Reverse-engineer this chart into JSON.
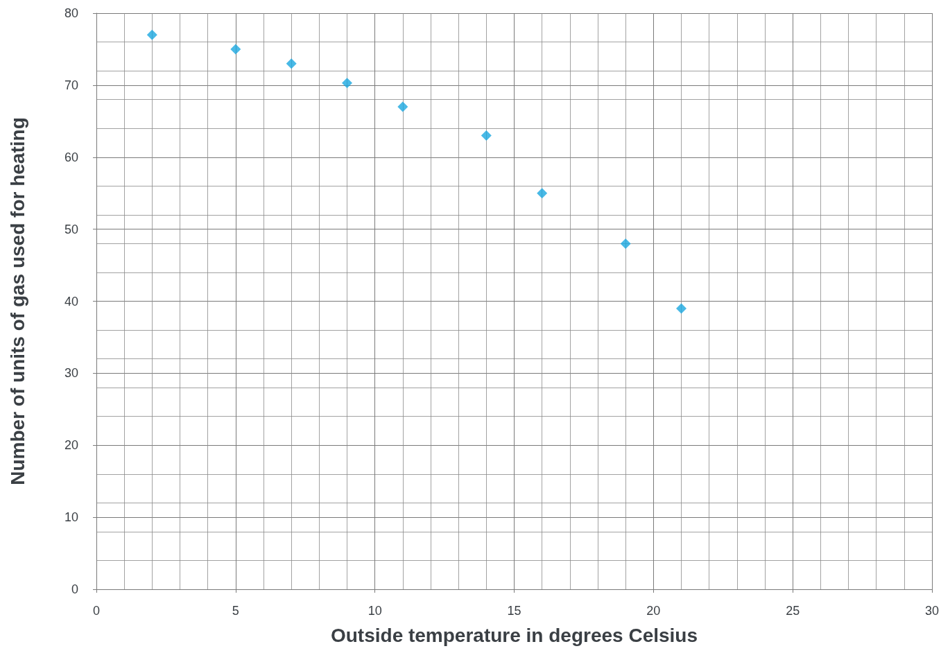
{
  "chart_data": {
    "type": "scatter",
    "xlabel": "Outside temperature in degrees Celsius",
    "ylabel": "Number of units of gas used for heating",
    "x": [
      2,
      5,
      7,
      9,
      11,
      14,
      16,
      19,
      21
    ],
    "values": [
      77,
      75,
      73,
      70.3,
      67,
      63,
      55,
      48,
      39
    ],
    "color": "#1aa7e0",
    "marker": "diamond",
    "grid": true,
    "xlim": [
      0,
      30
    ],
    "xticks": [
      0,
      5,
      10,
      15,
      20,
      25,
      30
    ],
    "ylim": [
      0,
      80
    ],
    "yticks": [
      0,
      10,
      20,
      30,
      40,
      50,
      60,
      70,
      80
    ]
  }
}
